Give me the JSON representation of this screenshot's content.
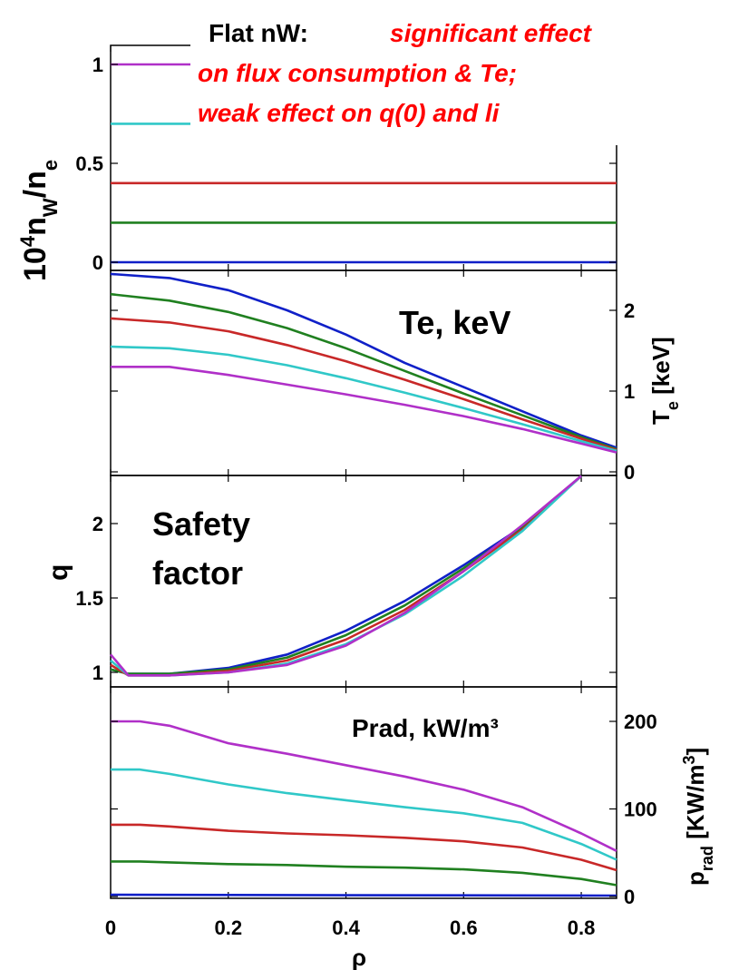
{
  "annotation": {
    "lead": "Flat nW: ",
    "line1": "significant effect",
    "line2": "on flux consumption & Te;",
    "line3": "weak effect on q(0) and li"
  },
  "colors": {
    "purple": "#b030c8",
    "cyan": "#30c8c8",
    "red": "#c82828",
    "green": "#208020",
    "blue": "#1020c8"
  },
  "chart_data": [
    {
      "type": "line",
      "panel": "nw",
      "ylabel_main": "10",
      "ylabel_sup": "4",
      "ylabel_rest": "n",
      "ylabel_sub1": "W",
      "ylabel_mid": "/n",
      "ylabel_sub2": "e",
      "left_ticks": [
        "0",
        "0.5",
        "1"
      ],
      "ylim": [
        0,
        1
      ],
      "xlim": [
        0,
        0.86
      ],
      "series": [
        {
          "color": "purple",
          "x": [
            0,
            0.86
          ],
          "y": [
            1.0,
            1.0
          ]
        },
        {
          "color": "cyan",
          "x": [
            0,
            0.86
          ],
          "y": [
            0.7,
            0.7
          ]
        },
        {
          "color": "red",
          "x": [
            0,
            0.86
          ],
          "y": [
            0.4,
            0.4
          ]
        },
        {
          "color": "green",
          "x": [
            0,
            0.86
          ],
          "y": [
            0.2,
            0.2
          ]
        },
        {
          "color": "blue",
          "x": [
            0,
            0.86
          ],
          "y": [
            0.0,
            0.0
          ]
        }
      ]
    },
    {
      "type": "line",
      "panel": "te",
      "inner_label": "Te, keV",
      "right_label": "T",
      "right_label_sub": "e",
      "right_label_rest": " [keV]",
      "right_ticks": [
        "0",
        "1",
        "2"
      ],
      "ylim": [
        0,
        2.5
      ],
      "xlim": [
        0,
        0.86
      ],
      "series": [
        {
          "color": "blue",
          "x": [
            0,
            0.1,
            0.2,
            0.3,
            0.4,
            0.5,
            0.6,
            0.7,
            0.8,
            0.86
          ],
          "y": [
            2.45,
            2.4,
            2.25,
            2.0,
            1.7,
            1.35,
            1.05,
            0.75,
            0.45,
            0.3
          ]
        },
        {
          "color": "green",
          "x": [
            0,
            0.1,
            0.2,
            0.3,
            0.4,
            0.5,
            0.6,
            0.7,
            0.8,
            0.86
          ],
          "y": [
            2.2,
            2.12,
            1.98,
            1.78,
            1.53,
            1.25,
            0.97,
            0.7,
            0.43,
            0.28
          ]
        },
        {
          "color": "red",
          "x": [
            0,
            0.1,
            0.2,
            0.3,
            0.4,
            0.5,
            0.6,
            0.7,
            0.8,
            0.86
          ],
          "y": [
            1.9,
            1.85,
            1.74,
            1.57,
            1.37,
            1.14,
            0.9,
            0.65,
            0.41,
            0.27
          ]
        },
        {
          "color": "cyan",
          "x": [
            0,
            0.1,
            0.2,
            0.3,
            0.4,
            0.5,
            0.6,
            0.7,
            0.8,
            0.86
          ],
          "y": [
            1.55,
            1.53,
            1.45,
            1.32,
            1.16,
            0.98,
            0.79,
            0.59,
            0.38,
            0.26
          ]
        },
        {
          "color": "purple",
          "x": [
            0,
            0.1,
            0.2,
            0.3,
            0.4,
            0.5,
            0.6,
            0.7,
            0.8,
            0.86
          ],
          "y": [
            1.3,
            1.3,
            1.2,
            1.08,
            0.96,
            0.83,
            0.69,
            0.53,
            0.35,
            0.24
          ]
        }
      ]
    },
    {
      "type": "line",
      "panel": "q",
      "inner_label_1": "Safety",
      "inner_label_2": "factor",
      "ylabel": "q",
      "left_ticks": [
        "1",
        "1.5",
        "2"
      ],
      "ylim": [
        0.93,
        2.32
      ],
      "xlim": [
        0,
        0.86
      ],
      "series": [
        {
          "color": "blue",
          "x": [
            0,
            0.03,
            0.1,
            0.2,
            0.3,
            0.4,
            0.5,
            0.6,
            0.7,
            0.8
          ],
          "y": [
            1.02,
            0.99,
            0.99,
            1.03,
            1.12,
            1.28,
            1.48,
            1.72,
            1.98,
            2.32
          ]
        },
        {
          "color": "green",
          "x": [
            0,
            0.03,
            0.1,
            0.2,
            0.3,
            0.4,
            0.5,
            0.6,
            0.7,
            0.8
          ],
          "y": [
            1.02,
            0.99,
            0.99,
            1.02,
            1.1,
            1.25,
            1.45,
            1.7,
            1.97,
            2.32
          ]
        },
        {
          "color": "red",
          "x": [
            0,
            0.03,
            0.1,
            0.2,
            0.3,
            0.4,
            0.5,
            0.6,
            0.7,
            0.8
          ],
          "y": [
            1.05,
            0.98,
            0.98,
            1.01,
            1.08,
            1.22,
            1.42,
            1.68,
            1.96,
            2.32
          ]
        },
        {
          "color": "cyan",
          "x": [
            0,
            0.03,
            0.1,
            0.2,
            0.3,
            0.4,
            0.5,
            0.6,
            0.7,
            0.8
          ],
          "y": [
            1.08,
            0.98,
            0.98,
            1.0,
            1.06,
            1.19,
            1.39,
            1.65,
            1.95,
            2.32
          ]
        },
        {
          "color": "purple",
          "x": [
            0,
            0.03,
            0.1,
            0.2,
            0.3,
            0.4,
            0.5,
            0.6,
            0.7,
            0.8
          ],
          "y": [
            1.12,
            0.98,
            0.98,
            1.0,
            1.05,
            1.18,
            1.4,
            1.68,
            1.99,
            2.32
          ]
        }
      ]
    },
    {
      "type": "line",
      "panel": "prad",
      "inner_label": "Prad, kW/m³",
      "right_label": "p",
      "right_label_sub": "rad",
      "right_label_rest": " [KW/m",
      "right_label_sup": "3",
      "right_label_end": "]",
      "right_ticks": [
        "0",
        "100",
        "200"
      ],
      "xlabel": "ρ",
      "x_ticks": [
        "0",
        "0.2",
        "0.4",
        "0.6",
        "0.8"
      ],
      "ylim": [
        0,
        220
      ],
      "xlim": [
        0,
        0.86
      ],
      "series": [
        {
          "color": "purple",
          "x": [
            0,
            0.05,
            0.1,
            0.2,
            0.3,
            0.4,
            0.5,
            0.6,
            0.7,
            0.8,
            0.86
          ],
          "y": [
            200,
            200,
            195,
            175,
            163,
            150,
            137,
            122,
            102,
            72,
            52
          ]
        },
        {
          "color": "cyan",
          "x": [
            0,
            0.05,
            0.1,
            0.2,
            0.3,
            0.4,
            0.5,
            0.6,
            0.7,
            0.8,
            0.86
          ],
          "y": [
            145,
            145,
            140,
            128,
            118,
            110,
            102,
            95,
            84,
            60,
            42
          ]
        },
        {
          "color": "red",
          "x": [
            0,
            0.05,
            0.1,
            0.2,
            0.3,
            0.4,
            0.5,
            0.6,
            0.7,
            0.8,
            0.86
          ],
          "y": [
            82,
            82,
            80,
            75,
            72,
            70,
            67,
            63,
            56,
            42,
            30
          ]
        },
        {
          "color": "green",
          "x": [
            0,
            0.05,
            0.1,
            0.2,
            0.3,
            0.4,
            0.5,
            0.6,
            0.7,
            0.8,
            0.86
          ],
          "y": [
            40,
            40,
            39,
            37,
            36,
            34,
            33,
            31,
            27,
            20,
            13
          ]
        },
        {
          "color": "blue",
          "x": [
            0,
            0.86
          ],
          "y": [
            2,
            1
          ]
        }
      ]
    }
  ]
}
